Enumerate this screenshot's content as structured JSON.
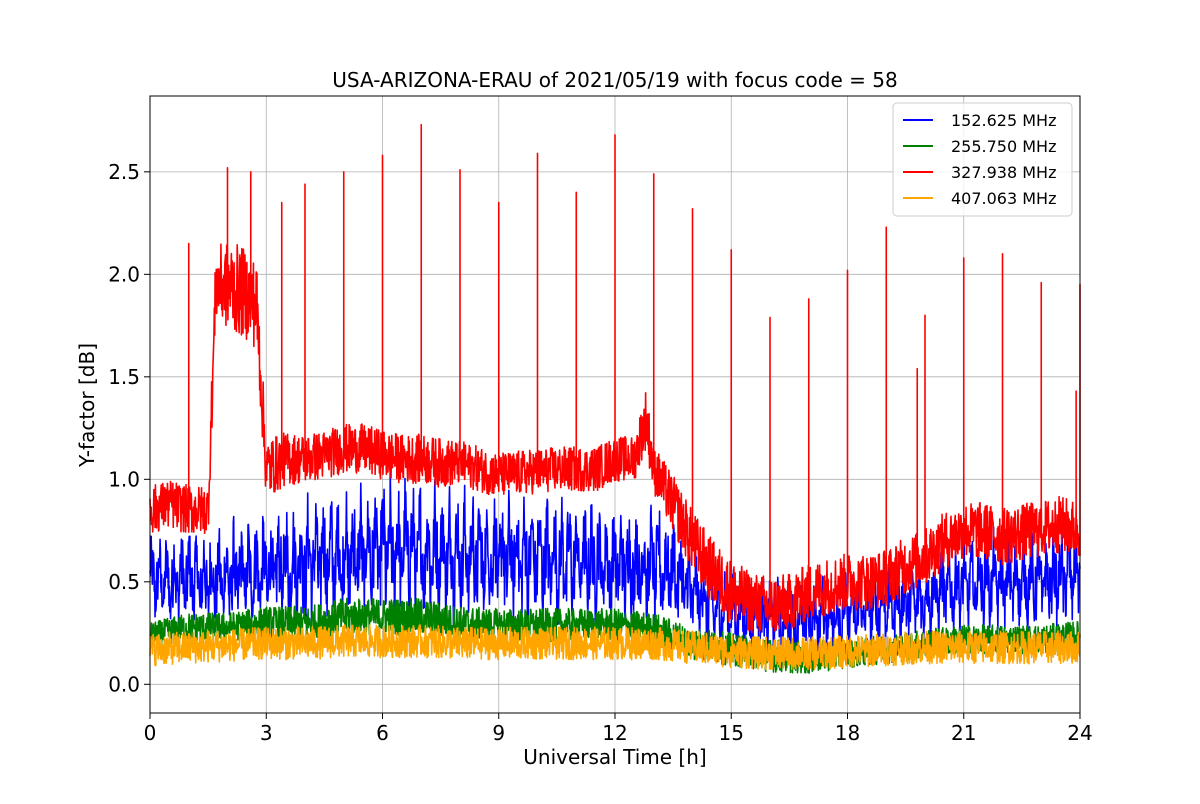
{
  "chart_data": {
    "type": "line",
    "title": "USA-ARIZONA-ERAU of 2021/05/19 with focus code = 58",
    "xlabel": "Universal Time [h]",
    "ylabel": "Y-factor [dB]",
    "xlim": [
      0,
      24
    ],
    "ylim": [
      -0.14,
      2.87
    ],
    "x_ticks": [
      0,
      3,
      6,
      9,
      12,
      15,
      18,
      21,
      24
    ],
    "y_ticks": [
      0.0,
      0.5,
      1.0,
      1.5,
      2.0,
      2.5
    ],
    "x_tick_labels": [
      "0",
      "3",
      "6",
      "9",
      "12",
      "15",
      "18",
      "21",
      "24"
    ],
    "y_tick_labels": [
      "0.0",
      "0.5",
      "1.0",
      "1.5",
      "2.0",
      "2.5"
    ],
    "grid": true,
    "legend_position": "top-right",
    "colors": {
      "series_1": "#0000ff",
      "series_2": "#008000",
      "series_3": "#ff0000",
      "series_4": "#ffa500"
    },
    "series": [
      {
        "name": "152.625 MHz",
        "color": "#0000ff",
        "x": [
          0,
          0.5,
          1,
          1.5,
          2,
          2.5,
          3,
          3.5,
          4,
          4.5,
          5,
          5.5,
          6,
          6.5,
          7,
          7.5,
          8,
          8.5,
          9,
          9.5,
          10,
          10.5,
          11,
          11.5,
          12,
          12.5,
          13,
          13.5,
          14,
          14.5,
          15,
          15.5,
          16,
          16.5,
          17,
          17.5,
          18,
          18.5,
          19,
          19.5,
          20,
          20.5,
          21,
          21.5,
          22,
          22.5,
          23,
          23.5,
          24
        ],
        "center": [
          0.52,
          0.5,
          0.52,
          0.5,
          0.52,
          0.54,
          0.55,
          0.57,
          0.6,
          0.62,
          0.62,
          0.64,
          0.65,
          0.65,
          0.65,
          0.64,
          0.63,
          0.63,
          0.62,
          0.62,
          0.62,
          0.61,
          0.6,
          0.6,
          0.58,
          0.58,
          0.57,
          0.55,
          0.45,
          0.38,
          0.35,
          0.35,
          0.32,
          0.3,
          0.32,
          0.33,
          0.35,
          0.36,
          0.38,
          0.4,
          0.42,
          0.46,
          0.48,
          0.5,
          0.5,
          0.5,
          0.5,
          0.52,
          0.55
        ],
        "amplitude": [
          0.2,
          0.24,
          0.25,
          0.25,
          0.26,
          0.27,
          0.28,
          0.3,
          0.32,
          0.33,
          0.34,
          0.34,
          0.35,
          0.34,
          0.34,
          0.33,
          0.33,
          0.32,
          0.32,
          0.32,
          0.31,
          0.31,
          0.31,
          0.3,
          0.3,
          0.3,
          0.3,
          0.28,
          0.25,
          0.22,
          0.2,
          0.2,
          0.2,
          0.19,
          0.2,
          0.2,
          0.2,
          0.2,
          0.21,
          0.21,
          0.22,
          0.23,
          0.24,
          0.24,
          0.24,
          0.24,
          0.24,
          0.24,
          0.24
        ]
      },
      {
        "name": "255.750 MHz",
        "color": "#008000",
        "x": [
          0,
          1,
          2,
          3,
          4,
          5,
          6,
          7,
          8,
          9,
          10,
          11,
          12,
          13,
          14,
          15,
          16,
          17,
          18,
          19,
          20,
          21,
          22,
          23,
          24
        ],
        "center": [
          0.24,
          0.28,
          0.28,
          0.3,
          0.3,
          0.33,
          0.33,
          0.33,
          0.3,
          0.29,
          0.29,
          0.29,
          0.29,
          0.27,
          0.2,
          0.17,
          0.14,
          0.13,
          0.15,
          0.17,
          0.2,
          0.22,
          0.22,
          0.22,
          0.24
        ],
        "amplitude": [
          0.06,
          0.07,
          0.07,
          0.08,
          0.08,
          0.09,
          0.09,
          0.09,
          0.08,
          0.08,
          0.08,
          0.08,
          0.08,
          0.08,
          0.08,
          0.08,
          0.08,
          0.08,
          0.07,
          0.07,
          0.07,
          0.07,
          0.07,
          0.07,
          0.07
        ]
      },
      {
        "name": "327.938 MHz",
        "color": "#ff0000",
        "x": [
          0,
          0.5,
          1,
          1.5,
          1.7,
          2,
          2.5,
          2.75,
          3,
          3.5,
          4,
          4.5,
          5,
          5.5,
          6,
          6.5,
          7,
          7.5,
          8,
          8.5,
          9,
          9.5,
          10,
          10.5,
          11,
          11.5,
          12,
          12.5,
          12.8,
          13,
          13.5,
          14,
          14.5,
          15,
          15.5,
          16,
          16.5,
          17,
          17.5,
          18,
          18.5,
          19,
          19.5,
          20,
          20.5,
          21,
          21.5,
          22,
          22.5,
          23,
          23.5,
          24
        ],
        "center": [
          0.85,
          0.88,
          0.85,
          0.85,
          1.95,
          1.95,
          1.9,
          1.85,
          1.05,
          1.1,
          1.1,
          1.12,
          1.15,
          1.15,
          1.12,
          1.1,
          1.1,
          1.08,
          1.08,
          1.05,
          1.02,
          1.03,
          1.04,
          1.05,
          1.05,
          1.05,
          1.1,
          1.1,
          1.3,
          1.05,
          0.88,
          0.7,
          0.55,
          0.45,
          0.4,
          0.38,
          0.4,
          0.45,
          0.48,
          0.5,
          0.5,
          0.52,
          0.58,
          0.62,
          0.7,
          0.75,
          0.75,
          0.72,
          0.74,
          0.76,
          0.78,
          0.75
        ],
        "amplitude": [
          0.12,
          0.12,
          0.12,
          0.12,
          0.18,
          0.22,
          0.22,
          0.22,
          0.15,
          0.13,
          0.12,
          0.12,
          0.12,
          0.12,
          0.12,
          0.12,
          0.12,
          0.12,
          0.11,
          0.11,
          0.11,
          0.11,
          0.11,
          0.11,
          0.11,
          0.11,
          0.11,
          0.11,
          0.15,
          0.12,
          0.14,
          0.15,
          0.16,
          0.16,
          0.15,
          0.15,
          0.14,
          0.14,
          0.14,
          0.14,
          0.14,
          0.14,
          0.14,
          0.14,
          0.14,
          0.14,
          0.14,
          0.14,
          0.14,
          0.14,
          0.14,
          0.14
        ],
        "spikes": [
          {
            "x": 1.0,
            "y": 2.15
          },
          {
            "x": 2.0,
            "y": 2.52
          },
          {
            "x": 2.6,
            "y": 2.5
          },
          {
            "x": 3.4,
            "y": 2.35
          },
          {
            "x": 4.0,
            "y": 2.44
          },
          {
            "x": 5.0,
            "y": 2.5
          },
          {
            "x": 6.0,
            "y": 2.58
          },
          {
            "x": 7.0,
            "y": 2.73
          },
          {
            "x": 8.0,
            "y": 2.51
          },
          {
            "x": 9.0,
            "y": 2.35
          },
          {
            "x": 10.0,
            "y": 2.59
          },
          {
            "x": 11.0,
            "y": 2.4
          },
          {
            "x": 12.0,
            "y": 2.68
          },
          {
            "x": 13.0,
            "y": 2.49
          },
          {
            "x": 14.0,
            "y": 2.32
          },
          {
            "x": 15.0,
            "y": 2.12
          },
          {
            "x": 16.0,
            "y": 1.79
          },
          {
            "x": 17.0,
            "y": 1.88
          },
          {
            "x": 18.0,
            "y": 2.02
          },
          {
            "x": 19.0,
            "y": 2.23
          },
          {
            "x": 19.8,
            "y": 1.54
          },
          {
            "x": 20.0,
            "y": 1.8
          },
          {
            "x": 21.0,
            "y": 2.08
          },
          {
            "x": 22.0,
            "y": 2.1
          },
          {
            "x": 23.0,
            "y": 1.96
          },
          {
            "x": 23.9,
            "y": 1.43
          },
          {
            "x": 24.0,
            "y": 1.95
          }
        ]
      },
      {
        "name": "407.063 MHz",
        "color": "#ffa500",
        "x": [
          0,
          1,
          2,
          3,
          4,
          5,
          6,
          7,
          8,
          9,
          10,
          11,
          12,
          13,
          14,
          15,
          16,
          17,
          18,
          19,
          20,
          21,
          22,
          23,
          24
        ],
        "center": [
          0.17,
          0.18,
          0.19,
          0.2,
          0.2,
          0.21,
          0.21,
          0.21,
          0.2,
          0.2,
          0.2,
          0.2,
          0.2,
          0.2,
          0.18,
          0.16,
          0.15,
          0.15,
          0.16,
          0.17,
          0.18,
          0.18,
          0.18,
          0.18,
          0.18
        ],
        "amplitude": [
          0.08,
          0.08,
          0.08,
          0.08,
          0.08,
          0.08,
          0.08,
          0.08,
          0.08,
          0.08,
          0.08,
          0.08,
          0.08,
          0.08,
          0.08,
          0.08,
          0.08,
          0.08,
          0.08,
          0.08,
          0.08,
          0.08,
          0.08,
          0.08,
          0.08
        ]
      }
    ]
  }
}
